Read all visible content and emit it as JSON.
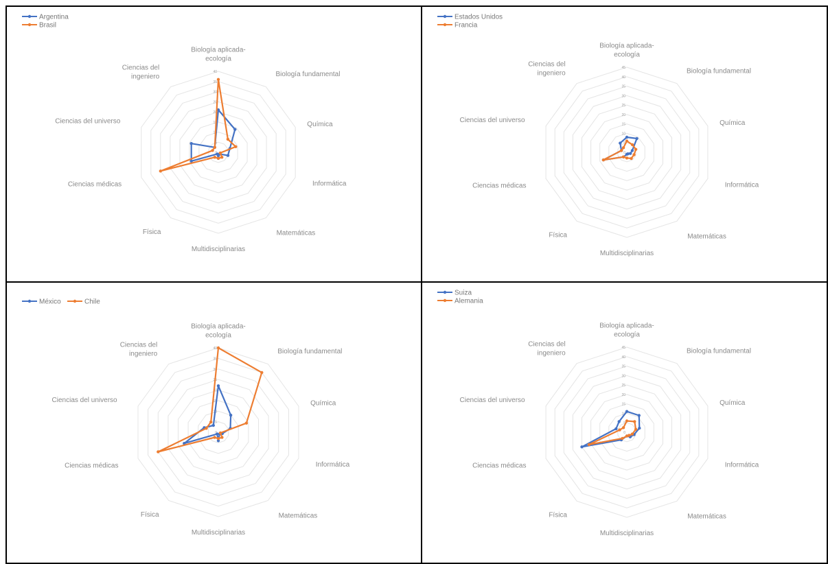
{
  "chart_data": [
    {
      "type": "radar",
      "categories": [
        "Biología aplicada-ecología",
        "Biología fundamental",
        "Química",
        "Informática",
        "Matemáticas",
        "Multidisciplinarias",
        "Física",
        "Ciencias médicas",
        "Ciencias del universo",
        "Ciencias del ingeniero"
      ],
      "category_lines": [
        [
          "Biología aplicada-",
          "ecología"
        ],
        [
          "Biología fundamental"
        ],
        [
          "Química"
        ],
        [
          "Informática"
        ],
        [
          "Matemáticas"
        ],
        [
          "Multidisciplinarias"
        ],
        [
          "Física"
        ],
        [
          "Ciencias médicas"
        ],
        [
          "Ciencias del universo"
        ],
        [
          "Ciencias del",
          "ingeniero"
        ]
      ],
      "rmax": 40,
      "ticks": [
        0,
        5,
        10,
        15,
        20,
        25,
        30,
        35,
        40
      ],
      "legend_layout": "stacked",
      "series": [
        {
          "name": "Argentina",
          "color": "#4472C4",
          "values": [
            21,
            14,
            6,
            5,
            1,
            3,
            1,
            14,
            14,
            3
          ]
        },
        {
          "name": "Brasil",
          "color": "#ED7D31",
          "values": [
            36,
            8,
            9,
            1,
            3,
            3,
            3,
            30,
            3,
            3
          ]
        }
      ]
    },
    {
      "type": "radar",
      "categories": [
        "Biología aplicada-ecología",
        "Biología fundamental",
        "Química",
        "Informática",
        "Matemáticas",
        "Multidisciplinarias",
        "Física",
        "Ciencias médicas",
        "Ciencias del universo",
        "Ciencias del ingeniero"
      ],
      "category_lines": [
        [
          "Biología aplicada-",
          "ecología"
        ],
        [
          "Biología fundamental"
        ],
        [
          "Química"
        ],
        [
          "Informática"
        ],
        [
          "Matemáticas"
        ],
        [
          "Multidisciplinarias"
        ],
        [
          "Física"
        ],
        [
          "Ciencias médicas"
        ],
        [
          "Ciencias del universo"
        ],
        [
          "Ciencias del",
          "ingeniero"
        ]
      ],
      "rmax": 45,
      "ticks": [
        0,
        5,
        10,
        15,
        20,
        25,
        30,
        35,
        40,
        45
      ],
      "legend_layout": "stacked",
      "series": [
        {
          "name": "Estados Unidos",
          "color": "#4472C4",
          "values": [
            8,
            9,
            3,
            2,
            1,
            1,
            3,
            13,
            3,
            6
          ]
        },
        {
          "name": "Francia",
          "color": "#ED7D31",
          "values": [
            6,
            5,
            5,
            4,
            4,
            3,
            3,
            13,
            3,
            3
          ]
        }
      ]
    },
    {
      "type": "radar",
      "categories": [
        "Biología aplicada-ecología",
        "Biología fundamental",
        "Química",
        "Informática",
        "Matemáticas",
        "Multidisciplinarias",
        "Física",
        "Ciencias médicas",
        "Ciencias del universo",
        "Ciencias del ingeniero"
      ],
      "category_lines": [
        [
          "Biología aplicada-",
          "ecología"
        ],
        [
          "Biología fundamental"
        ],
        [
          "Química"
        ],
        [
          "Informática"
        ],
        [
          "Matemáticas"
        ],
        [
          "Multidisciplinarias"
        ],
        [
          "Física"
        ],
        [
          "Ciencias médicas"
        ],
        [
          "Ciencias del universo"
        ],
        [
          "Ciencias del",
          "ingeniero"
        ]
      ],
      "rmax": 40,
      "ticks": [
        0,
        5,
        10,
        15,
        20,
        25,
        30,
        35,
        40
      ],
      "legend_layout": "inline",
      "series": [
        {
          "name": "México",
          "color": "#4472C4",
          "values": [
            22,
            10,
            6,
            2,
            1,
            4,
            1,
            17,
            7,
            4
          ]
        },
        {
          "name": "Chile",
          "color": "#ED7D31",
          "values": [
            40,
            35,
            14,
            1,
            3,
            3,
            3,
            30,
            6,
            6
          ]
        }
      ]
    },
    {
      "type": "radar",
      "categories": [
        "Biología aplicada-ecología",
        "Biología fundamental",
        "Química",
        "Informática",
        "Matemáticas",
        "Multidisciplinarias",
        "Física",
        "Ciencias médicas",
        "Ciencias del universo",
        "Ciencias del ingeniero"
      ],
      "category_lines": [
        [
          "Biología aplicada-",
          "ecología"
        ],
        [
          "Biología fundamental"
        ],
        [
          "Química"
        ],
        [
          "Informática"
        ],
        [
          "Matemáticas"
        ],
        [
          "Multidisciplinarias"
        ],
        [
          "Física"
        ],
        [
          "Ciencias médicas"
        ],
        [
          "Ciencias del universo"
        ],
        [
          "Ciencias del",
          "ingeniero"
        ]
      ],
      "rmax": 45,
      "ticks": [
        0,
        5,
        10,
        15,
        20,
        25,
        30,
        35,
        40,
        45
      ],
      "legend_layout": "stacked",
      "series": [
        {
          "name": "Suiza",
          "color": "#4472C4",
          "values": [
            11,
            11,
            7,
            4,
            3,
            2,
            5,
            25,
            6,
            7
          ]
        },
        {
          "name": "Alemania",
          "color": "#ED7D31",
          "values": [
            6,
            7,
            5,
            3,
            2,
            2,
            4,
            21,
            4,
            3
          ]
        }
      ]
    }
  ]
}
